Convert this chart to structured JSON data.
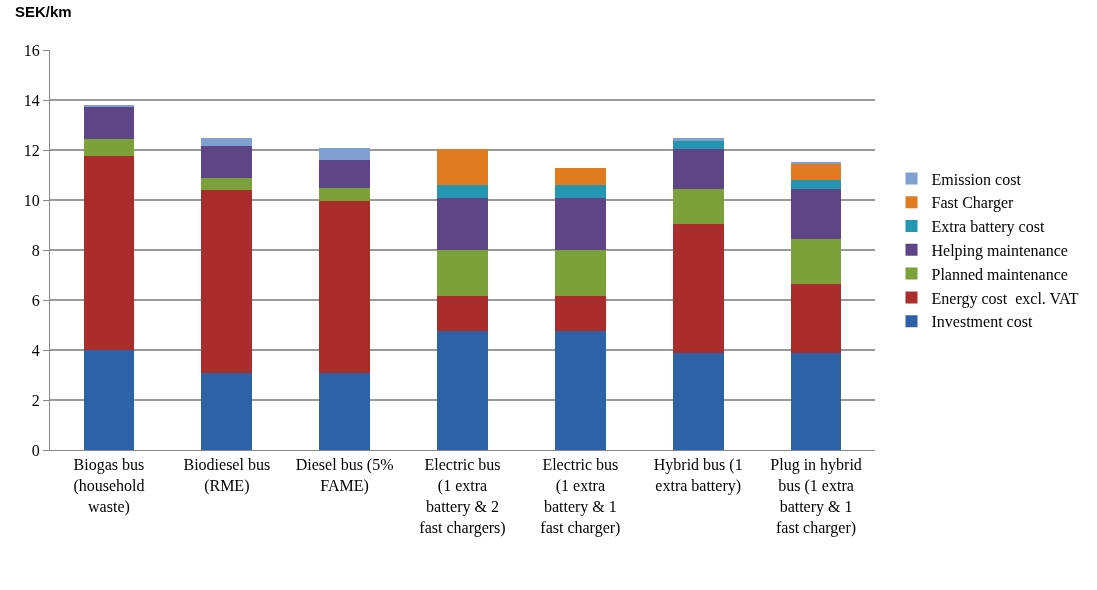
{
  "chart_data": {
    "type": "bar",
    "stacked": true,
    "ylabel": "SEK/km",
    "categories": [
      "Biogas bus (household waste)",
      "Biodiesel bus (RME)",
      "Diesel bus (5% FAME)",
      "Electric bus (1 extra battery & 2 fast chargers)",
      "Electric bus (1 extra battery & 1 fast charger)",
      "Hybrid bus (1 extra battery)",
      "Plug in hybrid bus (1 extra battery & 1 fast charger)"
    ],
    "series": [
      {
        "name": "Investment cost",
        "color": "#2e62a6",
        "values": [
          4.0,
          3.1,
          3.1,
          4.75,
          4.75,
          3.9,
          3.9
        ]
      },
      {
        "name": "Energy cost  excl. VAT",
        "color": "#a92e2b",
        "values": [
          7.75,
          7.3,
          6.85,
          1.4,
          1.4,
          5.15,
          2.75
        ]
      },
      {
        "name": "Planned maintenance",
        "color": "#7da13a",
        "values": [
          0.7,
          0.5,
          0.55,
          1.85,
          1.85,
          1.4,
          1.8
        ]
      },
      {
        "name": "Helping maintenance",
        "color": "#5e4585",
        "values": [
          1.3,
          1.25,
          1.1,
          2.1,
          2.1,
          1.6,
          2.0
        ]
      },
      {
        "name": "Extra battery cost",
        "color": "#2596b0",
        "values": [
          0,
          0,
          0,
          0.5,
          0.5,
          0.3,
          0.35
        ]
      },
      {
        "name": "Fast Charger",
        "color": "#e07b1f",
        "values": [
          0,
          0,
          0,
          1.45,
          0.7,
          0,
          0.65
        ]
      },
      {
        "name": "Emission cost",
        "color": "#7fa0d0",
        "values": [
          0.05,
          0.35,
          0.5,
          0,
          0,
          0.15,
          0.05
        ]
      }
    ],
    "ylim": [
      0,
      16
    ],
    "yticks": [
      0,
      2,
      4,
      6,
      8,
      10,
      12,
      14,
      16
    ],
    "grid": "y",
    "legend": "right"
  }
}
